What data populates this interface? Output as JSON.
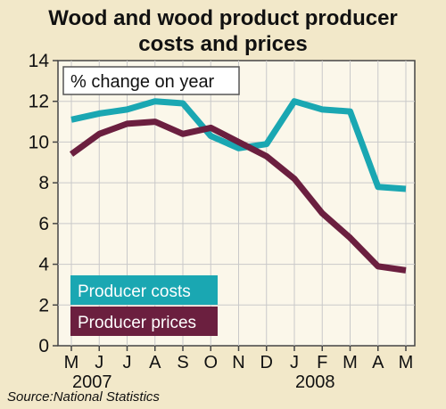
{
  "chart_data": {
    "type": "line",
    "title_lines": [
      "Wood and wood product producer",
      "costs and prices"
    ],
    "annotation": "% change on year",
    "x_ticks": [
      "M",
      "J",
      "J",
      "A",
      "S",
      "O",
      "N",
      "D",
      "J",
      "F",
      "M",
      "A",
      "M"
    ],
    "x_year_labels": [
      {
        "label": "2007",
        "tick_index": 0
      },
      {
        "label": "2008",
        "tick_index": 8
      }
    ],
    "ylim": [
      0,
      14
    ],
    "y_ticks": [
      0,
      2,
      4,
      6,
      8,
      10,
      12,
      14
    ],
    "grid": true,
    "legend_placement": "bottom-left",
    "series": [
      {
        "name": "Producer costs",
        "color": "#1aa7b2",
        "values": [
          11.1,
          11.4,
          11.6,
          12.0,
          11.9,
          10.3,
          9.7,
          9.9,
          12.0,
          11.6,
          11.5,
          7.8,
          7.7
        ]
      },
      {
        "name": "Producer prices",
        "color": "#6b1f3f",
        "values": [
          9.4,
          10.4,
          10.9,
          11.0,
          10.4,
          10.7,
          10.0,
          9.3,
          8.2,
          6.5,
          5.3,
          3.9,
          3.7
        ]
      }
    ],
    "source": "Source:National Statistics"
  }
}
